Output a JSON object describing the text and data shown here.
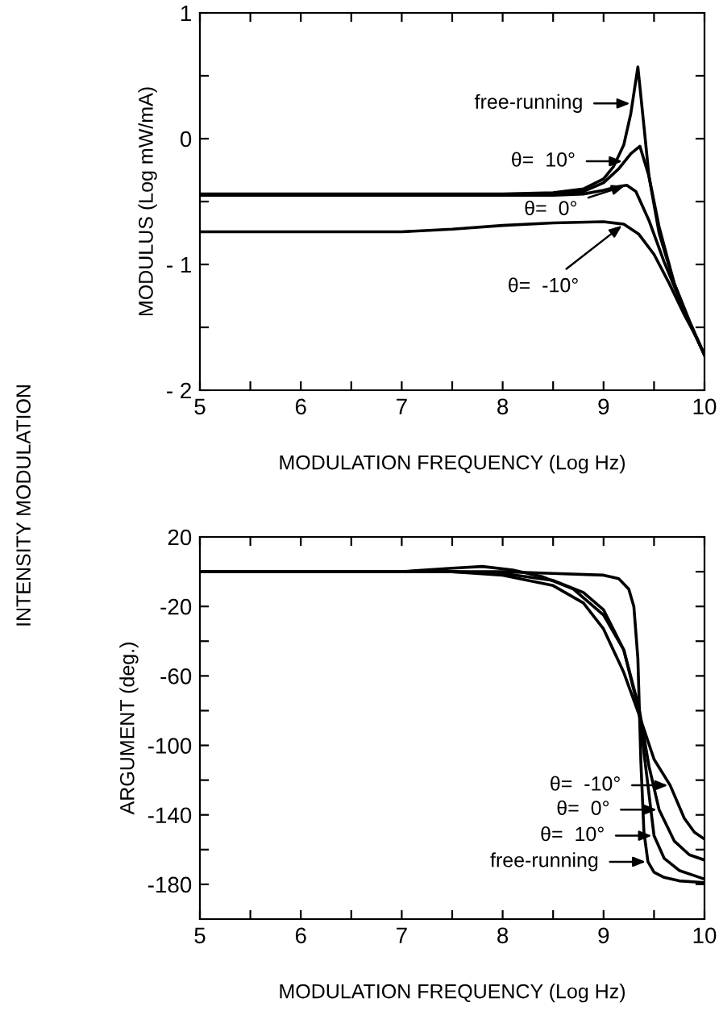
{
  "chart_data": [
    {
      "type": "line",
      "xlabel": "MODULATION FREQUENCY (Log Hz)",
      "ylabel": "MODULUS (Log mW/mA)",
      "xlim": [
        5,
        10
      ],
      "xticks": [
        5,
        {
          "value": 5.5,
          "label": null
        },
        6,
        {
          "value": 6.5,
          "label": null
        },
        7,
        {
          "value": 7.5,
          "label": null
        },
        8,
        {
          "value": 8.5,
          "label": null
        },
        9,
        {
          "value": 9.5,
          "label": null
        },
        10
      ],
      "ylim": [
        -2,
        1
      ],
      "yticks": [
        {
          "value": -2,
          "label": "- 2"
        },
        {
          "value": -1.5,
          "label": null
        },
        {
          "value": -1,
          "label": "- 1"
        },
        {
          "value": -0.5,
          "label": null
        },
        0,
        {
          "value": 0.5,
          "label": null
        },
        1
      ],
      "grid": false,
      "legend": false,
      "series": [
        {
          "color": "#000000",
          "x": [
            5,
            8.0,
            8.5,
            8.8,
            9.0,
            9.1,
            9.2,
            9.27,
            9.34,
            9.4,
            9.45,
            9.55,
            9.7,
            9.85,
            10
          ],
          "values": [
            -0.44,
            -0.44,
            -0.43,
            -0.4,
            -0.32,
            -0.22,
            -0.05,
            0.2,
            0.57,
            0.1,
            -0.3,
            -0.75,
            -1.15,
            -1.45,
            -1.72
          ]
        },
        {
          "color": "#000000",
          "x": [
            5,
            8.0,
            8.5,
            8.8,
            9.0,
            9.15,
            9.27,
            9.36,
            9.45,
            9.55,
            9.7,
            9.85,
            10
          ],
          "values": [
            -0.45,
            -0.45,
            -0.44,
            -0.42,
            -0.35,
            -0.24,
            -0.12,
            -0.06,
            -0.3,
            -0.7,
            -1.15,
            -1.45,
            -1.72
          ]
        },
        {
          "color": "#000000",
          "x": [
            5,
            8.0,
            8.5,
            8.8,
            9.0,
            9.15,
            9.23,
            9.32,
            9.45,
            9.6,
            9.75,
            9.9,
            10
          ],
          "values": [
            -0.45,
            -0.45,
            -0.45,
            -0.44,
            -0.41,
            -0.38,
            -0.37,
            -0.42,
            -0.65,
            -0.98,
            -1.27,
            -1.55,
            -1.72
          ]
        },
        {
          "color": "#000000",
          "x": [
            5,
            7.0,
            7.5,
            8.0,
            8.5,
            9.0,
            9.2,
            9.35,
            9.5,
            9.65,
            9.8,
            9.92,
            10
          ],
          "values": [
            -0.74,
            -0.74,
            -0.72,
            -0.69,
            -0.67,
            -0.66,
            -0.68,
            -0.76,
            -0.92,
            -1.15,
            -1.4,
            -1.58,
            -1.72
          ]
        }
      ],
      "annotations": [
        {
          "text": "free-running",
          "x": 9.285,
          "y": 0.28
        },
        {
          "text": "θ=  10°",
          "x": 9.21,
          "y": -0.18
        },
        {
          "text": "θ=  0°",
          "x": 9.23,
          "y": -0.37
        },
        {
          "text": "θ=  -10°",
          "x": 9.2,
          "y": -0.68
        },
        "INTENSITY MODULATION"
      ]
    },
    {
      "type": "line",
      "xlabel": "MODULATION FREQUENCY (Log Hz)",
      "ylabel": "ARGUMENT (deg.)",
      "xlim": [
        5,
        10
      ],
      "xticks": [
        5,
        {
          "value": 5.5,
          "label": null
        },
        6,
        {
          "value": 6.5,
          "label": null
        },
        7,
        {
          "value": 7.5,
          "label": null
        },
        8,
        {
          "value": 8.5,
          "label": null
        },
        9,
        {
          "value": 9.5,
          "label": null
        },
        10
      ],
      "ylim": [
        -200,
        20
      ],
      "yticks": [
        {
          "value": -200,
          "label": null
        },
        -180,
        {
          "value": -160,
          "label": null
        },
        -140,
        {
          "value": -120,
          "label": null
        },
        -100,
        {
          "value": -80,
          "label": null
        },
        -60,
        {
          "value": -40,
          "label": null
        },
        -20,
        {
          "value": 0,
          "label": null
        },
        20
      ],
      "grid": false,
      "legend": false,
      "series": [
        {
          "color": "#000000",
          "x": [
            5,
            8.0,
            8.5,
            9.0,
            9.15,
            9.25,
            9.3,
            9.34,
            9.37,
            9.4,
            9.44,
            9.5,
            9.6,
            9.75,
            10
          ],
          "values": [
            0,
            0,
            -1,
            -2,
            -4,
            -10,
            -20,
            -50,
            -110,
            -150,
            -167,
            -173,
            -176,
            -178,
            -179
          ]
        },
        {
          "color": "#000000",
          "x": [
            5,
            7.0,
            7.5,
            7.8,
            8.1,
            8.4,
            8.7,
            9.0,
            9.2,
            9.35,
            9.5,
            9.6,
            9.75,
            9.9,
            10
          ],
          "values": [
            0,
            0,
            2,
            3,
            1,
            -3,
            -10,
            -25,
            -45,
            -80,
            -152,
            -165,
            -172,
            -175,
            -177
          ]
        },
        {
          "color": "#000000",
          "x": [
            5,
            7.5,
            8.0,
            8.5,
            8.8,
            9.0,
            9.2,
            9.35,
            9.45,
            9.55,
            9.7,
            9.85,
            10
          ],
          "values": [
            0,
            0,
            -1,
            -5,
            -12,
            -22,
            -45,
            -78,
            -112,
            -137,
            -155,
            -163,
            -166
          ]
        },
        {
          "color": "#000000",
          "x": [
            5,
            7.5,
            8.0,
            8.5,
            8.8,
            9.0,
            9.2,
            9.35,
            9.5,
            9.66,
            9.8,
            9.9,
            10
          ],
          "values": [
            0,
            0,
            -2,
            -8,
            -18,
            -33,
            -58,
            -82,
            -108,
            -123,
            -142,
            -150,
            -154
          ]
        }
      ],
      "annotations": [
        {
          "text": "θ=  -10°",
          "x": 9.66,
          "y": -123
        },
        {
          "text": "θ=  0°",
          "x": 9.55,
          "y": -137
        },
        {
          "text": "θ=  10°",
          "x": 9.5,
          "y": -152
        },
        {
          "text": "free-running",
          "x": 9.44,
          "y": -167
        }
      ]
    }
  ]
}
